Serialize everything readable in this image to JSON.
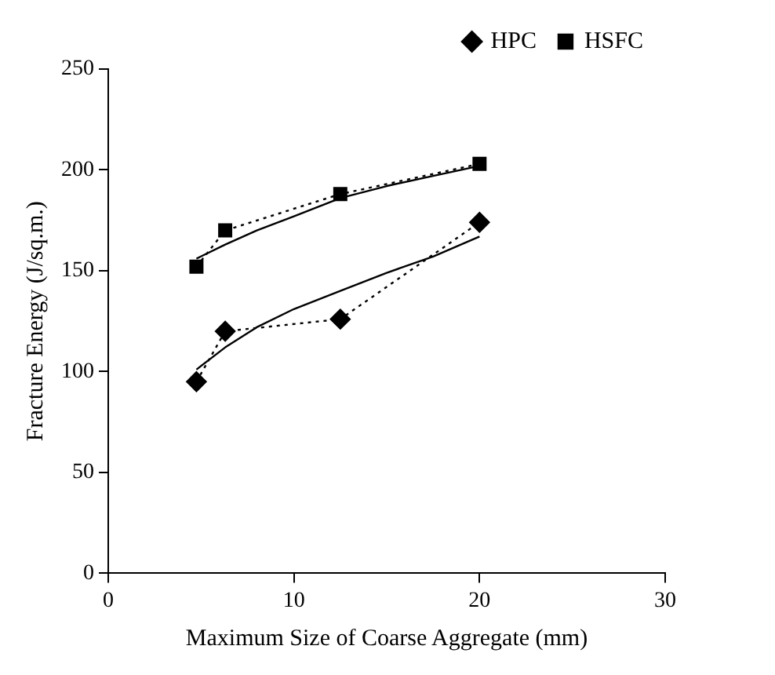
{
  "chart_data": {
    "type": "line",
    "xlabel": "Maximum Size of Coarse Aggregate (mm)",
    "ylabel": "Fracture Energy (J/sq.m.)",
    "xlim": [
      0,
      30
    ],
    "xticks": [
      0,
      10,
      20,
      30
    ],
    "ylim": [
      0,
      250
    ],
    "yticks": [
      0,
      50,
      100,
      150,
      200,
      250
    ],
    "grid": false,
    "legend": "top right",
    "series": [
      {
        "name": "HPC",
        "color": "#000000",
        "marker": "diamond",
        "line_style": "dotted",
        "x": [
          4.75,
          6.3,
          12.5,
          20
        ],
        "values": [
          95,
          120,
          126,
          174
        ]
      },
      {
        "name": "HSFC",
        "color": "#000000",
        "marker": "square",
        "line_style": "dotted",
        "x": [
          4.75,
          6.3,
          12.5,
          20
        ],
        "values": [
          152,
          170,
          188,
          203
        ]
      },
      {
        "color": "#000000",
        "marker": "none",
        "line_style": "solid",
        "x": [
          4.75,
          6.3,
          8,
          10,
          12.5,
          15,
          17.5,
          20
        ],
        "values": [
          101,
          112,
          122,
          131,
          140,
          149,
          157,
          167
        ]
      },
      {
        "color": "#000000",
        "marker": "none",
        "line_style": "solid",
        "x": [
          4.75,
          6.3,
          8,
          10,
          12.5,
          15,
          17.5,
          20
        ],
        "values": [
          156,
          163,
          170,
          177,
          186,
          192,
          197,
          202
        ]
      }
    ]
  }
}
